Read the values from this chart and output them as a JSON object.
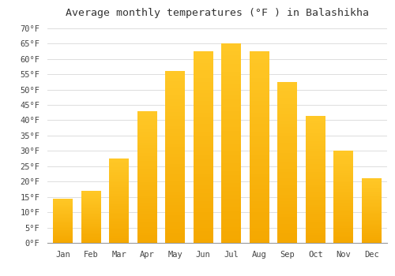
{
  "title": "Average monthly temperatures (°F ) in Balashikha",
  "months": [
    "Jan",
    "Feb",
    "Mar",
    "Apr",
    "May",
    "Jun",
    "Jul",
    "Aug",
    "Sep",
    "Oct",
    "Nov",
    "Dec"
  ],
  "values": [
    14.5,
    17.0,
    27.5,
    43.0,
    56.0,
    62.5,
    65.0,
    62.5,
    52.5,
    41.5,
    30.0,
    21.0
  ],
  "bar_color_top": "#FFC827",
  "bar_color_bottom": "#F5A800",
  "background_color": "#FFFFFF",
  "grid_color": "#DDDDDD",
  "ylim": [
    0,
    72
  ],
  "yticks": [
    0,
    5,
    10,
    15,
    20,
    25,
    30,
    35,
    40,
    45,
    50,
    55,
    60,
    65,
    70
  ],
  "ytick_labels": [
    "0°F",
    "5°F",
    "10°F",
    "15°F",
    "20°F",
    "25°F",
    "30°F",
    "35°F",
    "40°F",
    "45°F",
    "50°F",
    "55°F",
    "60°F",
    "65°F",
    "70°F"
  ],
  "title_fontsize": 9.5,
  "tick_fontsize": 7.5,
  "font_family": "monospace"
}
